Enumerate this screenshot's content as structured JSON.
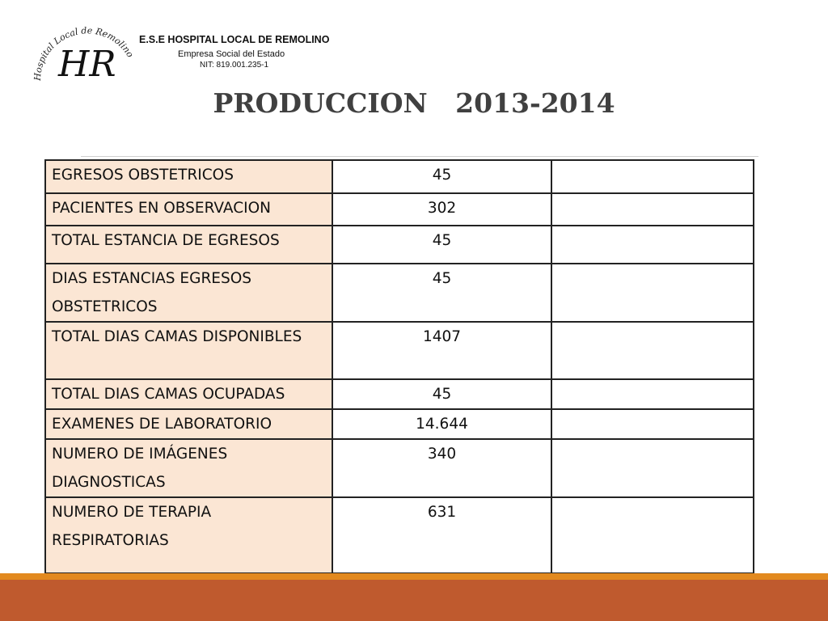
{
  "header": {
    "seal_text": "Hospital Local de Remolino E.S.E.",
    "seal_monogram": "HR",
    "hospital_name": "E.S.E HOSPITAL LOCAL DE REMOLINO",
    "subtitle": "Empresa Social del Estado",
    "nit": "NIT: 819.001.235-1"
  },
  "title": "PRODUCCION   2013-2014",
  "table": {
    "rows": [
      {
        "label": "EGRESOS OBSTETRICOS",
        "value": "45",
        "extra": ""
      },
      {
        "label": "PACIENTES EN OBSERVACION",
        "value": "302",
        "extra": ""
      },
      {
        "label": "TOTAL ESTANCIA DE EGRESOS",
        "value": "45",
        "extra": ""
      },
      {
        "label": "DIAS ESTANCIAS EGRESOS OBSTETRICOS",
        "value": "45",
        "extra": ""
      },
      {
        "label": "TOTAL DIAS CAMAS DISPONIBLES",
        "value": "1407",
        "extra": ""
      },
      {
        "label": "TOTAL DIAS CAMAS OCUPADAS",
        "value": "45",
        "extra": ""
      },
      {
        "label": "EXAMENES DE LABORATORIO",
        "value": "14.644",
        "extra": ""
      },
      {
        "label": "NUMERO DE IMÁGENES DIAGNOSTICAS",
        "value": "340",
        "extra": ""
      },
      {
        "label": "NUMERO DE TERAPIA RESPIRATORIAS",
        "value": "631",
        "extra": ""
      }
    ]
  },
  "colors": {
    "label_cell_bg": "#fbe6d4",
    "footer_top": "#e2891f",
    "footer_bottom": "#bf5a2e",
    "title_color": "#404040"
  }
}
